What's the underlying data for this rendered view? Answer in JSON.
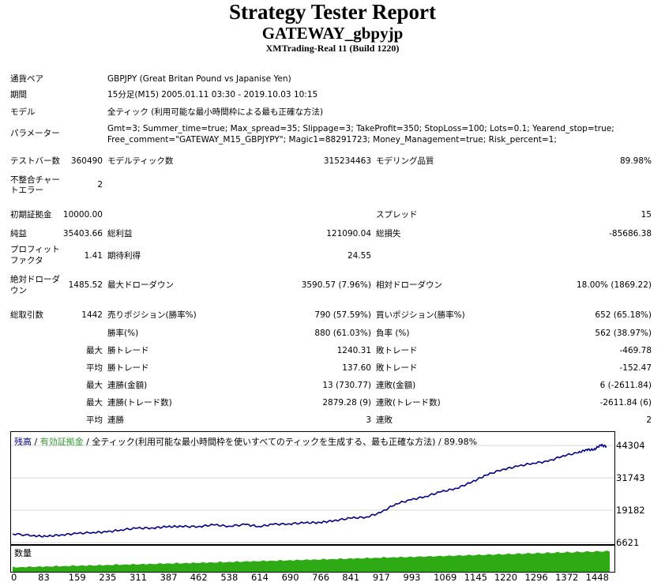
{
  "header": {
    "title": "Strategy Tester Report",
    "subtitle": "GATEWAY_gbpyjp",
    "server": "XMTrading-Real 11 (Build 1220)"
  },
  "info": {
    "pair_label": "通貨ペア",
    "pair_value": "GBPJPY (Great Britan Pound vs Japanise Yen)",
    "period_label": "期間",
    "period_value": "15分足(M15) 2005.01.11 03:30 - 2019.10.03 10:15",
    "model_label": "モデル",
    "model_value": "全ティック (利用可能な最小時間枠による最も正確な方法)",
    "params_label": "パラメーター",
    "params_line1": "Gmt=3; Summer_time=true; Max_spread=35; Slippage=3; TakeProfit=350; StopLoss=100; Lots=0.1; Yearend_stop=true;",
    "params_line2": "Free_comment=\"GATEWAY_M15_GBPJYPY\"; Magic1=88291723; Money_Management=true; Risk_percent=1;"
  },
  "stats": {
    "bars_label": "テストバー数",
    "bars_value": "360490",
    "ticks_label": "モデルティック数",
    "ticks_value": "315234463",
    "quality_label": "モデリング品質",
    "quality_value": "89.98%",
    "mismatch_label_1": "不整合チャー",
    "mismatch_label_2": "トエラー",
    "mismatch_value": "2",
    "deposit_label": "初期証拠金",
    "deposit_value": "10000.00",
    "spread_label": "スプレッド",
    "spread_value": "15",
    "net_label": "純益",
    "net_value": "35403.66",
    "gross_profit_label": "総利益",
    "gross_profit_value": "121090.04",
    "gross_loss_label": "総損失",
    "gross_loss_value": "-85686.38",
    "pf_label_1": "プロフィット",
    "pf_label_2": "ファクタ",
    "pf_value": "1.41",
    "expected_label": "期待利得",
    "expected_value": "24.55",
    "abs_dd_label_1": "絶対ドローダ",
    "abs_dd_label_2": "ウン",
    "abs_dd_value": "1485.52",
    "max_dd_label": "最大ドローダウン",
    "max_dd_value": "3590.57 (7.96%)",
    "rel_dd_label": "相対ドローダウン",
    "rel_dd_value": "18.00% (1869.22)",
    "total_trades_label": "総取引数",
    "total_trades_value": "1442",
    "short_label": "売りポジション(勝率%)",
    "short_value": "790 (57.59%)",
    "long_label": "買いポジション(勝率%)",
    "long_value": "652 (65.18%)",
    "win_rate_label": "勝率(%)",
    "win_rate_value": "880 (61.03%)",
    "loss_rate_label": "負率 (%)",
    "loss_rate_value": "562 (38.97%)",
    "max_prefix": "最大",
    "avg_prefix": "平均",
    "largest_win_label": "勝トレード",
    "largest_win_value": "1240.31",
    "largest_loss_label": "敗トレード",
    "largest_loss_value": "-469.78",
    "avg_win_label": "勝トレード",
    "avg_win_value": "137.60",
    "avg_loss_label": "敗トレード",
    "avg_loss_value": "-152.47",
    "max_cons_wins_label": "連勝(金額)",
    "max_cons_wins_value": "13 (730.77)",
    "max_cons_losses_label": "連敗(金額)",
    "max_cons_losses_value": "6 (-2611.84)",
    "max_cons_profit_label": "連勝(トレード数)",
    "max_cons_profit_value": "2879.28 (9)",
    "max_cons_loss_label": "連敗(トレード数)",
    "max_cons_loss_value": "-2611.84 (6)",
    "avg_cons_wins_label": "連勝",
    "avg_cons_wins_value": "3",
    "avg_cons_losses_label": "連敗",
    "avg_cons_losses_value": "2"
  },
  "chart_legend": {
    "balance": "残高",
    "sep1": " / ",
    "equity": "有効証拠金",
    "rest": " / 全ティック(利用可能な最小時間枠を使いすべてのティックを生成する、最も正確な方法) / 89.98%"
  },
  "volume_label": "数量",
  "colors": {
    "balance": "#00008b",
    "equity": "#339933",
    "volume": "#2eaa14"
  },
  "chart_data": {
    "type": "line",
    "title": "",
    "xlabel": "",
    "ylabel": "",
    "y_ticks": [
      "44304",
      "31743",
      "19182",
      "6621"
    ],
    "x_ticks": [
      "0",
      "83",
      "159",
      "235",
      "311",
      "387",
      "462",
      "538",
      "614",
      "690",
      "766",
      "841",
      "917",
      "993",
      "1069",
      "1145",
      "1220",
      "1296",
      "1372",
      "1448"
    ],
    "xlim": [
      0,
      1488
    ],
    "ylim": [
      6621,
      46500
    ],
    "series": [
      {
        "name": "残高",
        "x": [
          0,
          50,
          83,
          120,
          159,
          200,
          235,
          270,
          311,
          350,
          387,
          420,
          462,
          500,
          538,
          580,
          614,
          650,
          690,
          730,
          766,
          800,
          841,
          880,
          917,
          955,
          993,
          1030,
          1069,
          1107,
          1145,
          1180,
          1220,
          1258,
          1296,
          1334,
          1372,
          1410,
          1430,
          1448,
          1465,
          1480
        ],
        "y": [
          10000,
          9300,
          9000,
          9600,
          10100,
          10600,
          10700,
          11600,
          12200,
          12300,
          12800,
          12900,
          12800,
          13500,
          13000,
          13600,
          12900,
          13700,
          13900,
          14300,
          14400,
          15100,
          16100,
          16500,
          18200,
          21700,
          23200,
          24600,
          26400,
          27700,
          30200,
          32800,
          35000,
          36200,
          37500,
          38100,
          40400,
          41500,
          42800,
          42600,
          44500,
          44000
        ]
      }
    ],
    "volume": {
      "name": "数量",
      "x": [
        0,
        500,
        1000,
        1488
      ],
      "y_fraction": [
        0.22,
        0.42,
        0.65,
        0.88
      ]
    }
  }
}
